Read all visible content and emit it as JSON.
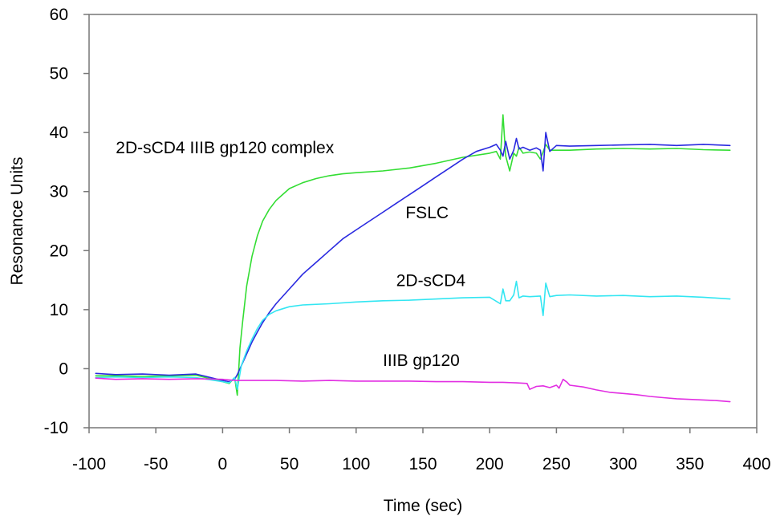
{
  "chart_data": {
    "type": "line",
    "title": "",
    "xlabel": "Time (sec)",
    "ylabel": "Resonance Units",
    "xlim": [
      -100,
      400
    ],
    "ylim": [
      -10,
      60
    ],
    "xticks": [
      -100,
      -50,
      0,
      50,
      100,
      150,
      200,
      250,
      300,
      350,
      400
    ],
    "yticks": [
      -10,
      0,
      10,
      20,
      30,
      40,
      50,
      60
    ],
    "xtick_labels": [
      "-100",
      "-50",
      "0",
      "50",
      "100",
      "150",
      "200",
      "250",
      "300",
      "350",
      "400"
    ],
    "ytick_labels": [
      "-10",
      "0",
      "10",
      "20",
      "30",
      "40",
      "50",
      "60"
    ],
    "grid": false,
    "legend": "none",
    "annotations": [
      {
        "text": "2D-sCD4 IIIB gp120 complex",
        "series": "complex",
        "x": -80,
        "y": 36.5
      },
      {
        "text": "FSLC",
        "series": "fslc",
        "x": 137,
        "y": 25.5
      },
      {
        "text": "2D-sCD4",
        "series": "sc2d",
        "x": 130,
        "y": 14
      },
      {
        "text": "IIIB  gp120",
        "series": "gp120",
        "x": 120,
        "y": 0.5
      }
    ],
    "series": [
      {
        "id": "complex",
        "color": "#33dd33",
        "x": [
          -95,
          -80,
          -60,
          -40,
          -20,
          0,
          5,
          9,
          11,
          13,
          15,
          18,
          22,
          26,
          30,
          35,
          40,
          45,
          50,
          60,
          70,
          80,
          90,
          100,
          120,
          140,
          160,
          180,
          200,
          205,
          208,
          210,
          212,
          215,
          218,
          220,
          222,
          225,
          230,
          235,
          238,
          240,
          242,
          245,
          250,
          260,
          280,
          300,
          320,
          340,
          360,
          380
        ],
        "y": [
          -1.2,
          -1.2,
          -1.3,
          -1.2,
          -1.1,
          -2.2,
          -2.5,
          -1.5,
          -4.5,
          3.5,
          8,
          14,
          19,
          22.5,
          25,
          27,
          28.5,
          29.5,
          30.5,
          31.5,
          32.2,
          32.7,
          33,
          33.2,
          33.5,
          34,
          34.8,
          35.8,
          36.5,
          36.8,
          35.5,
          43,
          36,
          33.5,
          36.5,
          36,
          37.5,
          36.5,
          36.7,
          36.5,
          35.5,
          36.7,
          38,
          37,
          37,
          37,
          37.2,
          37.3,
          37.2,
          37.3,
          37.1,
          37
        ]
      },
      {
        "id": "fslc",
        "color": "#2a2ae0",
        "x": [
          -95,
          -80,
          -60,
          -40,
          -20,
          0,
          5,
          9,
          11,
          14,
          18,
          22,
          26,
          30,
          35,
          40,
          50,
          60,
          70,
          80,
          90,
          100,
          110,
          120,
          130,
          140,
          150,
          160,
          170,
          180,
          190,
          200,
          205,
          208,
          210,
          212,
          215,
          218,
          220,
          222,
          225,
          230,
          235,
          238,
          240,
          242,
          245,
          250,
          260,
          280,
          300,
          320,
          340,
          360,
          380
        ],
        "y": [
          -0.8,
          -1.0,
          -0.9,
          -1.1,
          -0.9,
          -2.0,
          -2.2,
          -1.8,
          -1.0,
          0.5,
          2.5,
          4.5,
          6.2,
          7.8,
          9.5,
          11,
          13.5,
          16,
          18,
          20,
          22,
          23.5,
          25,
          26.5,
          28,
          29.5,
          31,
          32.5,
          34,
          35.5,
          36.8,
          37.5,
          38,
          37,
          36,
          38.5,
          35.5,
          37,
          39,
          37.2,
          37.5,
          37,
          37.4,
          37,
          33.5,
          40,
          36.8,
          37.8,
          37.7,
          37.8,
          37.9,
          38,
          37.8,
          38,
          37.8
        ]
      },
      {
        "id": "sc2d",
        "color": "#33e6f2",
        "x": [
          -95,
          -80,
          -60,
          -40,
          -20,
          0,
          5,
          9,
          11,
          14,
          18,
          22,
          26,
          30,
          35,
          40,
          50,
          60,
          80,
          100,
          120,
          140,
          160,
          180,
          200,
          208,
          210,
          212,
          215,
          218,
          220,
          222,
          225,
          230,
          238,
          240,
          242,
          245,
          250,
          260,
          280,
          300,
          320,
          340,
          360,
          380
        ],
        "y": [
          -1.5,
          -1.4,
          -1.5,
          -1.4,
          -1.5,
          -2.2,
          -2.4,
          -1.5,
          -3.5,
          0.5,
          3,
          5,
          6.8,
          8.2,
          9.2,
          9.8,
          10.5,
          10.8,
          11,
          11.3,
          11.5,
          11.6,
          11.8,
          12,
          12.1,
          11,
          13.5,
          11.5,
          11.5,
          12.5,
          14.8,
          12,
          12.3,
          12.2,
          12.3,
          9,
          14.5,
          12.2,
          12.4,
          12.5,
          12.3,
          12.4,
          12.2,
          12.3,
          12.1,
          11.8
        ]
      },
      {
        "id": "gp120",
        "color": "#e22ee2",
        "x": [
          -95,
          -80,
          -60,
          -40,
          -20,
          0,
          5,
          10,
          20,
          40,
          60,
          80,
          100,
          120,
          140,
          160,
          180,
          200,
          210,
          220,
          228,
          230,
          235,
          240,
          245,
          250,
          252,
          255,
          258,
          260,
          270,
          280,
          290,
          300,
          310,
          320,
          330,
          340,
          350,
          360,
          370,
          380
        ],
        "y": [
          -1.6,
          -1.8,
          -1.7,
          -1.8,
          -1.7,
          -1.8,
          -1.9,
          -2.0,
          -2.0,
          -2.0,
          -2.1,
          -2.0,
          -2.1,
          -2.1,
          -2.1,
          -2.2,
          -2.2,
          -2.3,
          -2.3,
          -2.4,
          -2.5,
          -3.5,
          -3.0,
          -2.9,
          -3.2,
          -2.8,
          -3.3,
          -1.8,
          -2.3,
          -2.8,
          -3.1,
          -3.6,
          -4.0,
          -4.2,
          -4.4,
          -4.7,
          -4.9,
          -5.1,
          -5.2,
          -5.3,
          -5.4,
          -5.6
        ]
      }
    ]
  }
}
